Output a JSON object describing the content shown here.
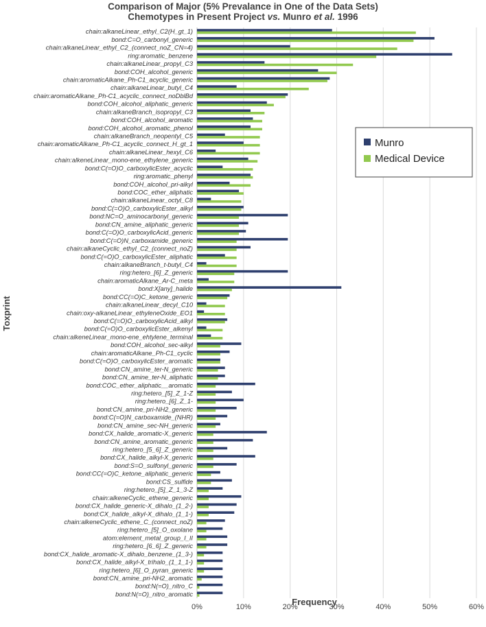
{
  "chart_data": {
    "type": "bar",
    "orientation": "horizontal",
    "title_line1": "Comparison of Major (5% Prevalance in One of the Data Sets)",
    "title_line2_pre": "Chemotypes in Present Project ",
    "title_line2_vs": "vs.",
    "title_line2_mid": " Munro ",
    "title_line2_etal": "et al.",
    "title_line2_post": " 1996",
    "xlabel": "Frequency",
    "ylabel": "Toxprint",
    "xlim": [
      0,
      60
    ],
    "xticks": [
      "0%",
      "10%",
      "20%",
      "30%",
      "40%",
      "50%",
      "60%"
    ],
    "grid": true,
    "legend_position": "right",
    "categories": [
      "chain:alkaneLinear_ethyl_C2(H_gt_1)",
      "bond:C=O_carbonyl_generic",
      "chain:alkaneLinear_ethyl_C2_(connect_noZ_CN=4)",
      "ring:aromatic_benzene",
      "chain:alkaneLinear_propyl_C3",
      "bond:COH_alcohol_generic",
      "chain:aromaticAlkane_Ph-C1_acyclic_generic",
      "chain:alkaneLinear_butyl_C4",
      "chain:aromaticAlkane_Ph-C1_acyclic_connect_noDblBd",
      "bond:COH_alcohol_aliphatic_generic",
      "chain:alkaneBranch_isopropyl_C3",
      "bond:COH_alcohol_aromatic",
      "bond:COH_alcohol_aromatic_phenol",
      "chain:alkaneBranch_neopentyl_C5",
      "chain:aromaticAlkane_Ph-C1_acyclic_connect_H_gt_1",
      "chain:alkaneLinear_hexyl_C6",
      "chain:alkeneLinear_mono-ene_ethylene_generic",
      "bond:C(=O)O_carboxylicEster_acyclic",
      "ring:aromatic_phenyl",
      "bond:COH_alcohol_pri-alkyl",
      "bond:COC_ether_aliphatic",
      "chain:alkaneLinear_octyl_C8",
      "bond:C(=O)O_carboxylicEster_alkyl",
      "bond:NC=O_aminocarbonyl_generic",
      "bond:CN_amine_aliphatic_generic",
      "bond:C(=O)O_carboxylicAcid_generic",
      "bond:C(=O)N_carboxamide_generic",
      "chain:alkaneCyclic_ethyl_C2_(connect_noZ)",
      "bond:C(=O)O_carboxylicEster_aliphatic",
      "chain:alkaneBranch_t-butyl_C4",
      "ring:hetero_[6]_Z_generic",
      "chain:aromaticAlkane_Ar-C_meta",
      "bond:X[any]_halide",
      "bond:CC(=O)C_ketone_generic",
      "chain:alkaneLinear_decyl_C10",
      "chain:oxy-alkaneLinear_ethyleneOxide_EO1",
      "bond:C(=O)O_carboxylicAcid_alkyl",
      "bond:C(=O)O_carboxylicEster_alkenyl",
      "chain:alkeneLinear_mono-ene_ehtylene_terminal",
      "bond:COH_alcohol_sec-alkyl",
      "chain:aromaticAlkane_Ph-C1_cyclic",
      "bond:C(=O)O_carboxylicEster_aromatic",
      "bond:CN_amine_ter-N_generic",
      "bond:CN_amine_ter-N_aliphatic",
      "bond:COC_ether_aliphatic__aromatic",
      "ring:hetero_[5]_Z_1-Z",
      "ring:hetero_[6]_Z_1-",
      "bond:CN_amine_pri-NH2_generic",
      "bond:C(=O)N_carboxamide_(NHR)",
      "bond:CN_amine_sec-NH_generic",
      "bond:CX_halide_aromatic-X_generic",
      "bond:CN_amine_aromatic_generic",
      "ring:hetero_[5_6]_Z_generic",
      "bond:CX_halide_alkyl-X_generic",
      "bond:S=O_sulfonyl_generic",
      "bond:CC(=O)C_ketone_aliphatic_generic",
      "bond:CS_sulfide",
      "ring:hetero_[5]_Z_1_3-Z",
      "chain:alkeneCyclic_ethene_generic",
      "bond:CX_halide_generic-X_dihalo_(1_2-)",
      "bond:CX_halide_alkyl-X_dihalo_(1_1-)",
      "chain:alkeneCyclic_ethene_C_(connect_noZ)",
      "ring:hetero_[5]_O_oxolane",
      "atom:element_metal_group_I_II",
      "ring:hetero_[6_6]_Z_generic",
      "bond:CX_halide_aromatic-X_dihalo_benzene_(1_3-)",
      "bond:CX_halide_alkyl-X_trihalo_(1_1_1-)",
      "ring:hetero_[6]_O_pyran_generic",
      "bond:CN_amine_pri-NH2_aromatic",
      "bond:N(=O)_nitro_C",
      "bond:N(=O)_nitro_aromatic"
    ],
    "series": [
      {
        "name": "Munro",
        "color": "#2e3f6e",
        "values": [
          29.0,
          51.0,
          20.0,
          54.8,
          14.5,
          26.0,
          28.5,
          8.5,
          19.5,
          15.0,
          11.5,
          12.0,
          11.5,
          6.0,
          10.0,
          4.0,
          11.0,
          5.5,
          11.5,
          7.0,
          9.0,
          3.0,
          10.0,
          19.5,
          11.0,
          10.5,
          19.5,
          11.5,
          6.0,
          2.0,
          19.5,
          2.5,
          31.0,
          7.0,
          2.0,
          1.5,
          6.5,
          2.0,
          3.0,
          9.5,
          7.0,
          5.0,
          6.0,
          6.0,
          12.5,
          7.5,
          10.0,
          8.5,
          6.5,
          5.0,
          15.0,
          12.0,
          6.5,
          12.5,
          8.5,
          5.0,
          7.5,
          5.5,
          9.5,
          8.5,
          8.0,
          6.0,
          5.5,
          6.5,
          6.5,
          5.5,
          5.5,
          5.5,
          5.5,
          5.5,
          5.5
        ]
      },
      {
        "name": "Medical Device",
        "color": "#92c94f",
        "values": [
          47.0,
          46.5,
          43.0,
          38.5,
          33.5,
          30.0,
          28.0,
          24.0,
          19.0,
          16.5,
          14.5,
          14.0,
          14.0,
          13.5,
          13.5,
          13.5,
          13.0,
          12.0,
          12.0,
          11.5,
          10.0,
          9.5,
          9.5,
          9.0,
          9.0,
          9.0,
          8.5,
          8.5,
          8.5,
          8.5,
          8.0,
          8.0,
          7.5,
          6.5,
          6.0,
          6.0,
          6.0,
          5.5,
          5.5,
          5.0,
          5.0,
          5.0,
          4.5,
          4.5,
          4.0,
          4.0,
          4.0,
          4.0,
          4.0,
          4.0,
          3.5,
          3.5,
          3.5,
          3.5,
          3.5,
          3.0,
          3.0,
          2.5,
          2.5,
          2.5,
          2.5,
          2.0,
          2.0,
          2.0,
          2.0,
          1.5,
          1.5,
          1.5,
          1.0,
          0.5,
          0.5
        ]
      }
    ]
  }
}
